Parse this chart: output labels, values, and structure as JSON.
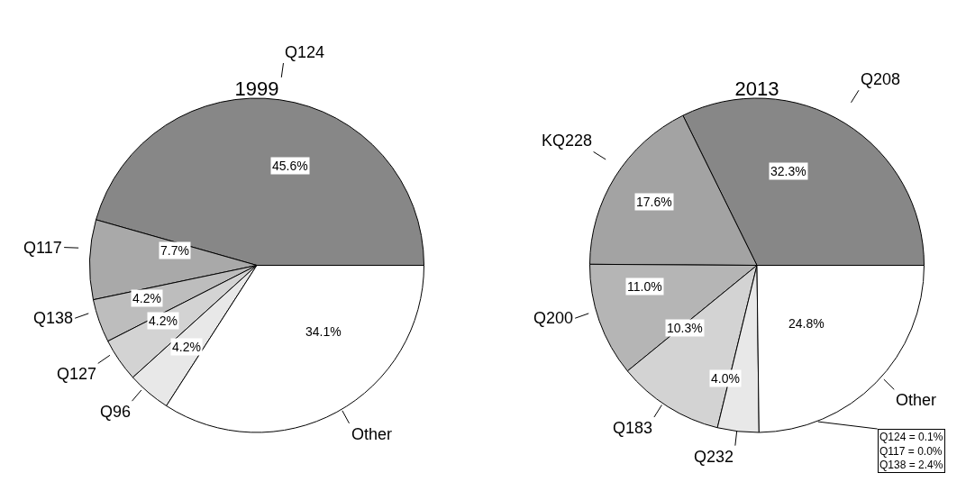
{
  "chart_data": [
    {
      "type": "pie",
      "title": "1999",
      "categories": [
        "Q124",
        "Q117",
        "Q138",
        "Q127",
        "Q96",
        "Other"
      ],
      "values": [
        45.6,
        7.7,
        4.2,
        4.2,
        4.2,
        34.1
      ],
      "value_labels": [
        "45.6%",
        "7.7%",
        "4.2%",
        "4.2%",
        "4.2%",
        "34.1%"
      ],
      "colors": [
        "#878787",
        "#a9a9a9",
        "#bdbdbd",
        "#d3d3d3",
        "#e8e8e8",
        "#ffffff"
      ]
    },
    {
      "type": "pie",
      "title": "2013",
      "categories": [
        "Q208",
        "KQ228",
        "Q200",
        "Q183",
        "Q232",
        "Other"
      ],
      "values": [
        32.3,
        17.6,
        11.0,
        10.3,
        4.0,
        24.8
      ],
      "value_labels": [
        "32.3%",
        "17.6%",
        "11.0%",
        "10.3%",
        "4.0%",
        "24.8%"
      ],
      "colors": [
        "#878787",
        "#a3a3a3",
        "#b5b5b5",
        "#d3d3d3",
        "#e8e8e8",
        "#ffffff"
      ],
      "annotations": [
        "Q124 = 0.1%",
        "Q117 = 0.0%",
        "Q138 = 2.4%"
      ]
    }
  ]
}
